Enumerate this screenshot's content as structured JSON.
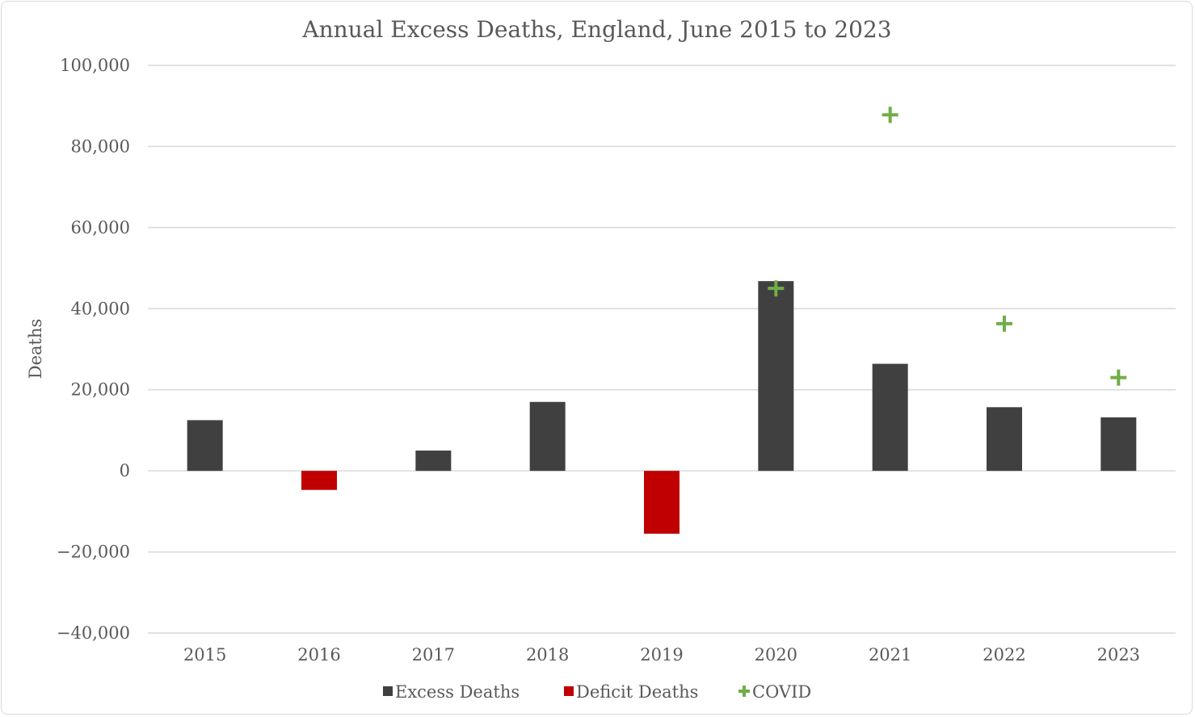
{
  "chart_data": {
    "type": "bar",
    "title": "Annual Excess Deaths, England, June 2015 to 2023",
    "xlabel": "",
    "ylabel": "Deaths",
    "ylim": [
      -40000,
      100000
    ],
    "yticks": [
      100000,
      80000,
      60000,
      40000,
      20000,
      0,
      -20000,
      -40000
    ],
    "ytick_labels": [
      "100,000",
      "80,000",
      "60,000",
      "40,000",
      "20,000",
      "0",
      "−20,000",
      "−40,000"
    ],
    "categories": [
      "2015",
      "2016",
      "2017",
      "2018",
      "2019",
      "2020",
      "2021",
      "2022",
      "2023"
    ],
    "grid": true,
    "legend_position": "bottom",
    "series": [
      {
        "name": "Excess Deaths",
        "kind": "bar",
        "color": "#404040",
        "values": [
          12500,
          null,
          5000,
          17000,
          null,
          46800,
          26400,
          15700,
          13200
        ]
      },
      {
        "name": "Deficit Deaths",
        "kind": "bar",
        "color": "#c00000",
        "values": [
          null,
          -4700,
          null,
          null,
          -15500,
          null,
          null,
          null,
          null
        ]
      },
      {
        "name": "COVID",
        "kind": "marker",
        "marker": "+",
        "color": "#70ad47",
        "values": [
          null,
          null,
          null,
          null,
          null,
          45000,
          87800,
          36300,
          23000
        ]
      }
    ]
  }
}
